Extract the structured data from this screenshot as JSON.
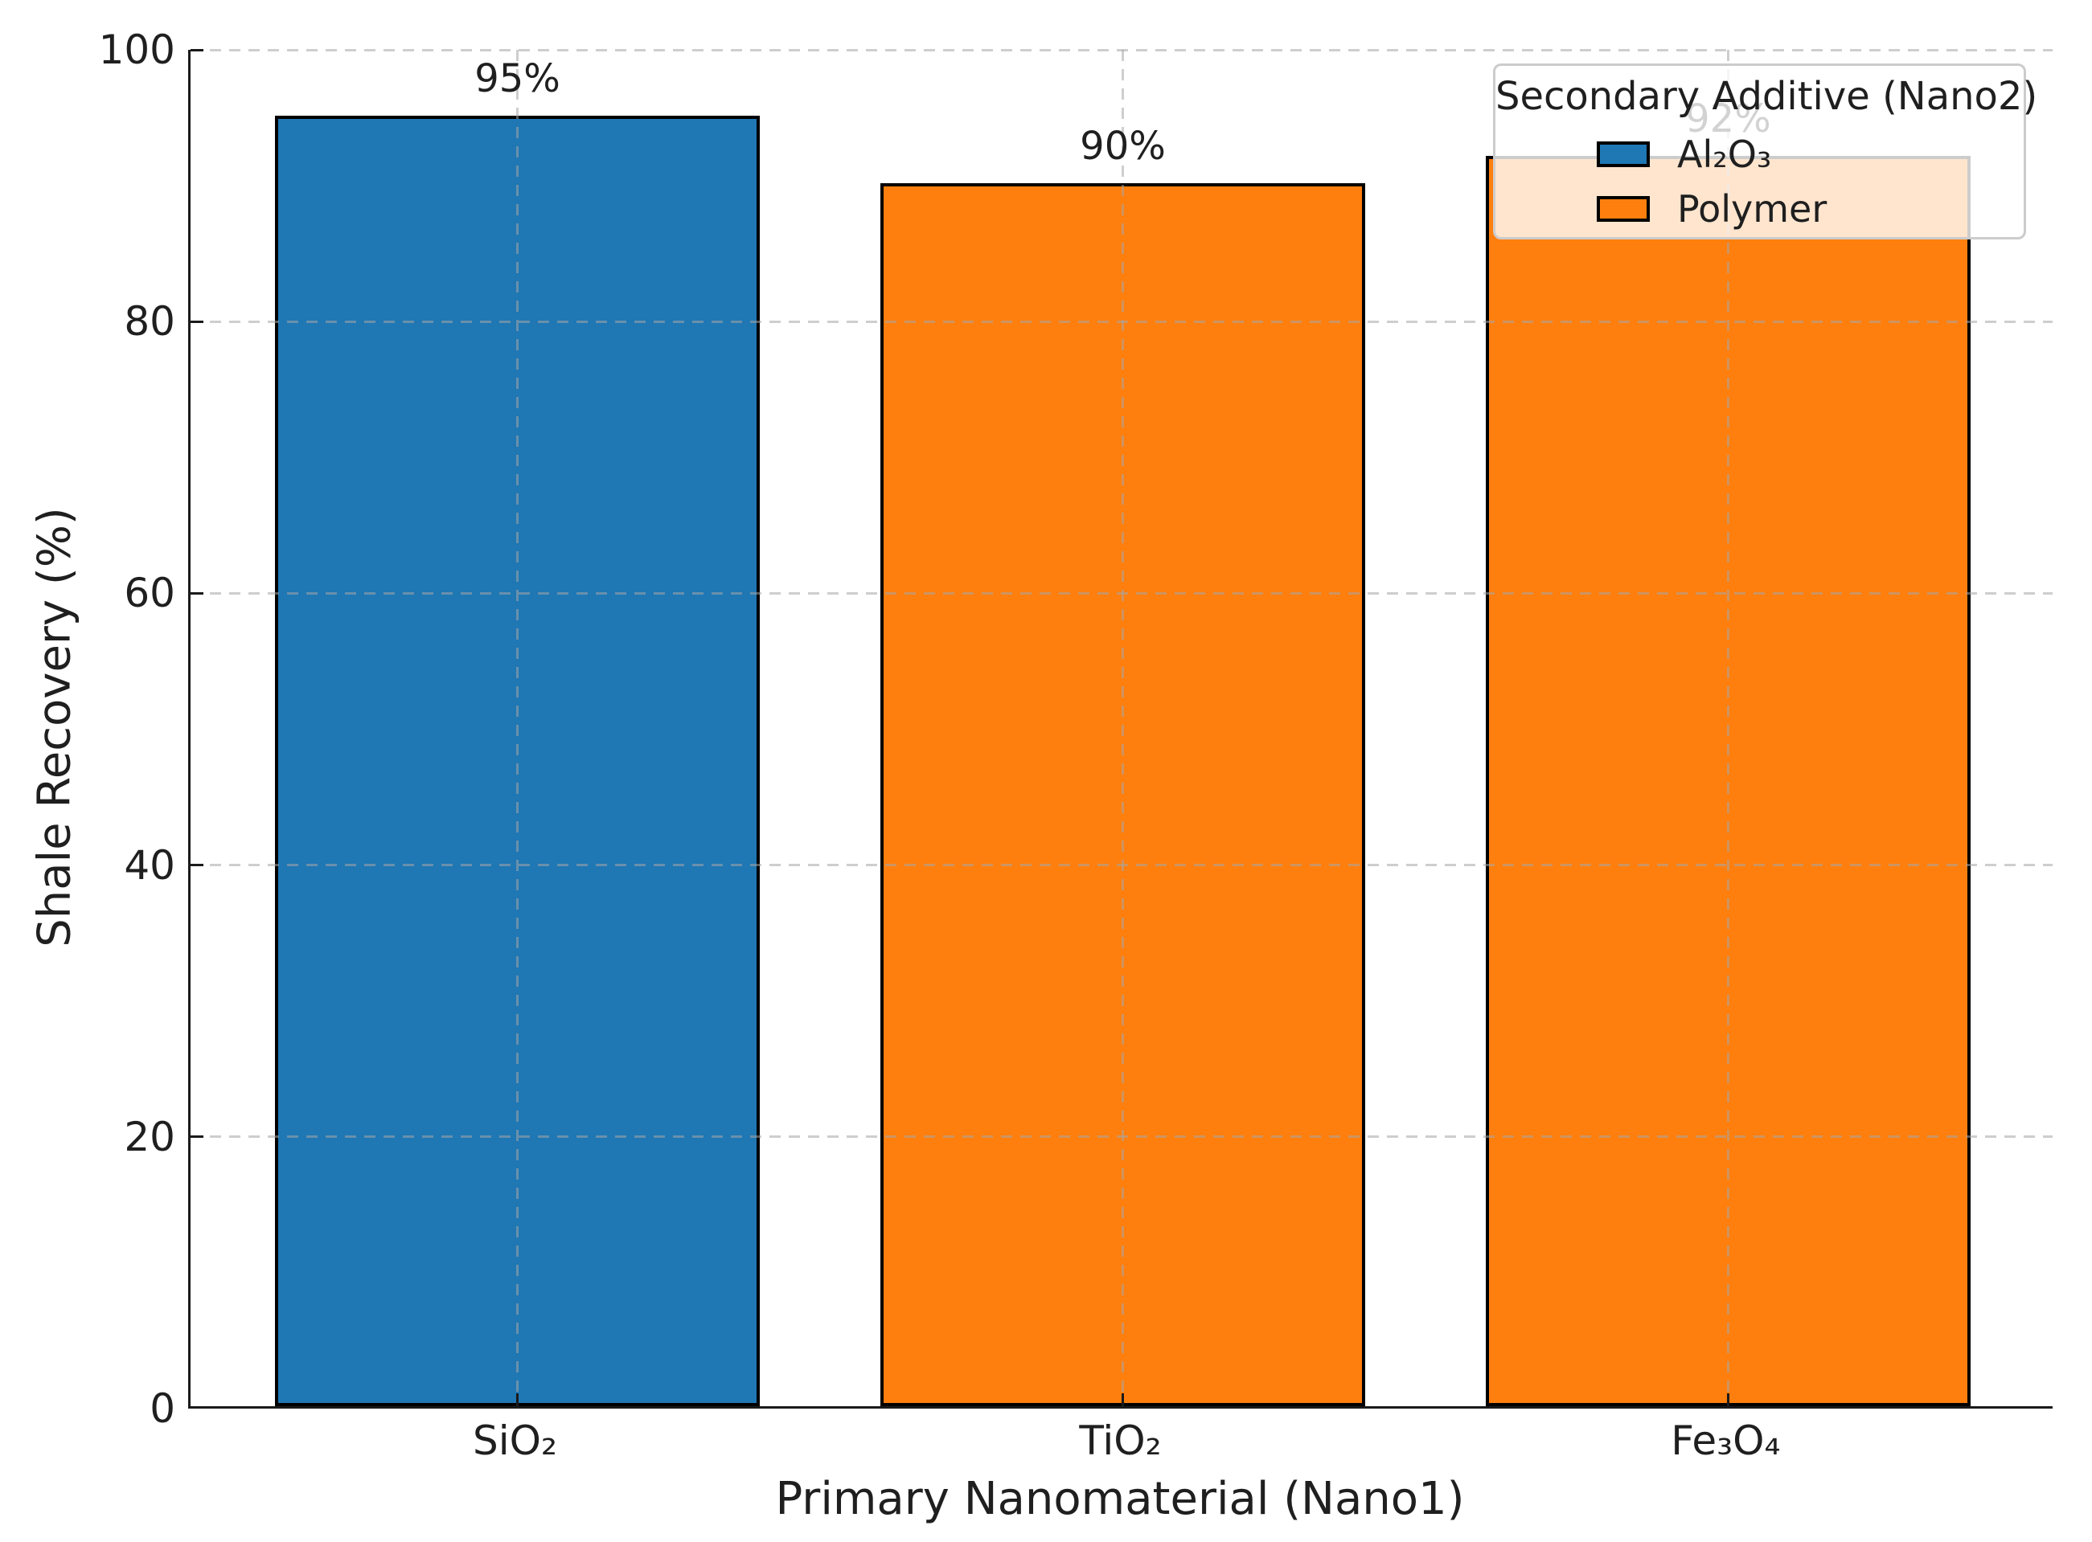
{
  "chart_data": {
    "type": "bar",
    "categories": [
      "SiO₂",
      "TiO₂",
      "Fe₃O₄"
    ],
    "values": [
      95,
      90,
      92
    ],
    "bar_labels": [
      "95%",
      "90%",
      "92%"
    ],
    "bar_colors": [
      "#1f77b4",
      "#ff7f0e",
      "#ff7f0e"
    ],
    "bar_groups": [
      "Al₂O₃",
      "Polymer",
      "Polymer"
    ],
    "bar_edge_color": "#000000",
    "xlabel": "Primary Nanomaterial (Nano1)",
    "ylabel": "Shale Recovery (%)",
    "ylim": [
      0,
      100
    ],
    "yticks": [
      0,
      20,
      40,
      60,
      80,
      100
    ],
    "ytick_labels": [
      "0",
      "20",
      "40",
      "60",
      "80",
      "100"
    ],
    "grid": "dashed light-gray, horizontal and vertical, drawn over bars",
    "legend": {
      "title": "Secondary Additive (Nano2)",
      "position": "upper right",
      "entries": [
        {
          "label": "Al₂O₃",
          "color": "#1f77b4"
        },
        {
          "label": "Polymer",
          "color": "#ff7f0e"
        }
      ]
    }
  },
  "colors": {
    "blue": "#1f77b4",
    "orange": "#ff7f0e",
    "axis": "#1a1a1a",
    "gridline": "#cccccc",
    "legend_border": "#cccccc"
  }
}
